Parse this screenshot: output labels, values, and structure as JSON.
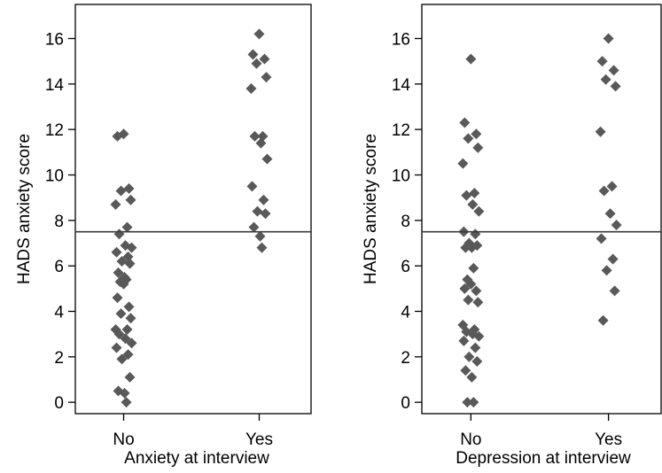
{
  "chart_data": [
    {
      "type": "scatter",
      "title": "",
      "xlabel": "Anxiety at interview",
      "ylabel": "HADS anxiety score",
      "categories": [
        "No",
        "Yes"
      ],
      "ylim": [
        -0.5,
        17.5
      ],
      "yticks": [
        0,
        2,
        4,
        6,
        8,
        10,
        12,
        14,
        16
      ],
      "reference_line": 7.5,
      "marker_color": "#595959",
      "grid": false,
      "series": [
        {
          "category": "No",
          "values": [
            11.8,
            11.7,
            9.4,
            9.3,
            8.9,
            8.7,
            7.7,
            7.4,
            6.9,
            6.8,
            6.6,
            6.4,
            6.2,
            6.1,
            5.7,
            5.5,
            5.4,
            5.3,
            5.2,
            4.6,
            4.2,
            3.9,
            3.7,
            3.2,
            3.2,
            3.0,
            2.8,
            2.6,
            2.4,
            2.1,
            1.9,
            1.1,
            0.5,
            0.4,
            0.0
          ]
        },
        {
          "category": "Yes",
          "values": [
            16.2,
            15.3,
            15.1,
            14.9,
            14.3,
            13.8,
            11.7,
            11.7,
            11.4,
            10.7,
            9.5,
            8.9,
            8.4,
            8.3,
            7.7,
            7.3,
            6.8
          ]
        }
      ]
    },
    {
      "type": "scatter",
      "title": "",
      "xlabel": "Depression at interview",
      "ylabel": "HADS anxiety score",
      "categories": [
        "No",
        "Yes"
      ],
      "ylim": [
        -0.5,
        17.5
      ],
      "yticks": [
        0,
        2,
        4,
        6,
        8,
        10,
        12,
        14,
        16
      ],
      "reference_line": 7.5,
      "marker_color": "#595959",
      "grid": false,
      "series": [
        {
          "category": "No",
          "values": [
            15.1,
            12.3,
            11.8,
            11.6,
            11.2,
            10.5,
            9.2,
            9.1,
            8.7,
            8.4,
            7.5,
            7.4,
            7.0,
            6.9,
            6.8,
            6.8,
            5.9,
            5.4,
            5.2,
            5.0,
            4.9,
            4.5,
            4.4,
            3.4,
            3.2,
            3.1,
            3.0,
            2.9,
            2.7,
            2.4,
            2.0,
            1.8,
            1.4,
            1.1,
            0.0,
            0.0
          ]
        },
        {
          "category": "Yes",
          "values": [
            16.0,
            15.0,
            14.6,
            14.2,
            13.9,
            11.9,
            9.5,
            9.3,
            8.3,
            7.8,
            7.2,
            6.3,
            5.8,
            4.9,
            3.6
          ]
        }
      ]
    }
  ]
}
